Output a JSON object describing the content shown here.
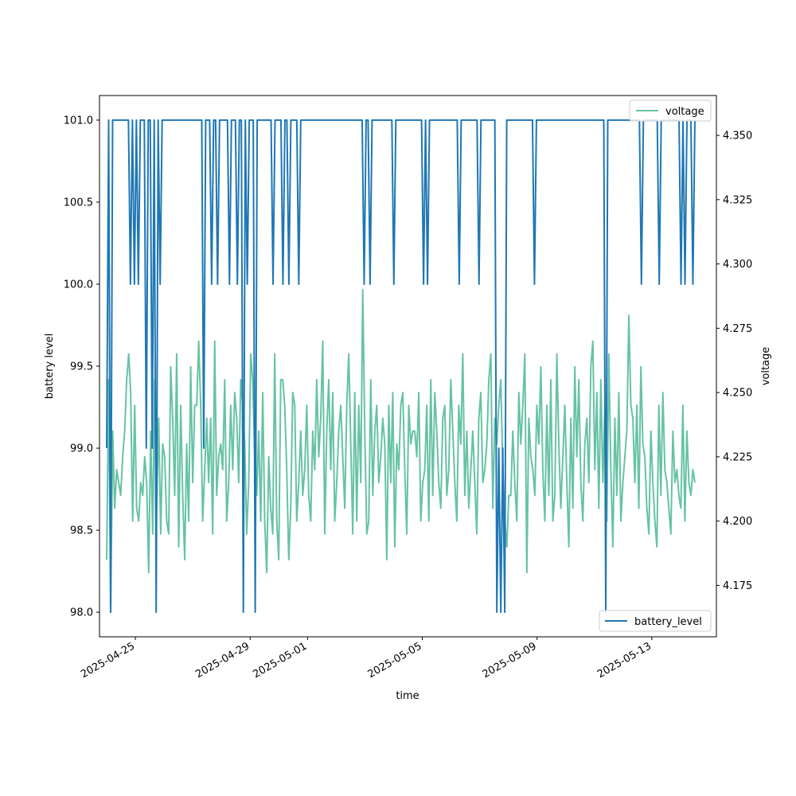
{
  "chart_data": {
    "type": "line",
    "xlabel": "time",
    "ylabel_left": "battery level",
    "ylabel_right": "voltage",
    "xlim": [
      "2025-04-23T18:00",
      "2025-05-15T06:00"
    ],
    "xticks": [
      "2025-04-25",
      "2025-04-29",
      "2025-05-01",
      "2025-05-05",
      "2025-05-09",
      "2025-05-13"
    ],
    "ylim_left": [
      97.85,
      101.15
    ],
    "yticks_left": [
      "98.0",
      "98.5",
      "99.0",
      "99.5",
      "100.0",
      "100.5",
      "101.0"
    ],
    "ylim_right": [
      4.155,
      4.3655
    ],
    "yticks_right": [
      "4.175",
      "4.200",
      "4.225",
      "4.250",
      "4.275",
      "4.300",
      "4.325",
      "4.350"
    ],
    "x_start": "2025-04-24T00:00",
    "x_end": "2025-05-14T12:00",
    "series": [
      {
        "name": "battery_level",
        "axis": "left",
        "color": "#1f77b4",
        "legend_position": "lower-right",
        "values": [
          99,
          101,
          98,
          101,
          101,
          101,
          101,
          101,
          101,
          101,
          101,
          101,
          100,
          101,
          100,
          101,
          100,
          101,
          101,
          101,
          99,
          101,
          101,
          99,
          101,
          98,
          101,
          100,
          101,
          101,
          101,
          101,
          101,
          101,
          101,
          101,
          101,
          101,
          101,
          101,
          101,
          101,
          101,
          101,
          101,
          101,
          101,
          101,
          101,
          99,
          101,
          101,
          101,
          100,
          101,
          101,
          100,
          101,
          101,
          101,
          101,
          101,
          100,
          101,
          101,
          101,
          100,
          101,
          101,
          98,
          101,
          100,
          101,
          101,
          101,
          98,
          101,
          101,
          101,
          101,
          101,
          101,
          101,
          101,
          100,
          101,
          101,
          101,
          101,
          100,
          101,
          101,
          100,
          101,
          101,
          101,
          101,
          100,
          101,
          101,
          101,
          101,
          101,
          101,
          101,
          101,
          101,
          101,
          101,
          101,
          101,
          101,
          101,
          101,
          101,
          101,
          101,
          101,
          101,
          101,
          101,
          101,
          101,
          101,
          101,
          101,
          101,
          101,
          101,
          101,
          100,
          101,
          101,
          100,
          101,
          101,
          101,
          101,
          101,
          101,
          101,
          101,
          101,
          101,
          101,
          100,
          101,
          101,
          101,
          101,
          101,
          101,
          101,
          101,
          101,
          101,
          101,
          101,
          101,
          101,
          100,
          101,
          100,
          101,
          101,
          101,
          101,
          101,
          101,
          101,
          101,
          101,
          101,
          101,
          101,
          101,
          101,
          101,
          100,
          101,
          101,
          101,
          101,
          101,
          101,
          101,
          101,
          101,
          100,
          101,
          101,
          101,
          101,
          101,
          101,
          101,
          101,
          98,
          99,
          98,
          99,
          98,
          101,
          101,
          101,
          101,
          101,
          101,
          101,
          101,
          101,
          101,
          101,
          101,
          101,
          101,
          100,
          101,
          101,
          101,
          101,
          101,
          101,
          101,
          101,
          101,
          101,
          101,
          101,
          101,
          101,
          101,
          101,
          101,
          101,
          101,
          101,
          101,
          101,
          101,
          101,
          101,
          101,
          101,
          101,
          101,
          101,
          101,
          101,
          101,
          101,
          101,
          98,
          101,
          101,
          101,
          101,
          101,
          101,
          101,
          101,
          101,
          101,
          101,
          101,
          101,
          101,
          101,
          101,
          101,
          100,
          101,
          101,
          101,
          101,
          101,
          101,
          101,
          101,
          100,
          101,
          101,
          101,
          101,
          101,
          101,
          101,
          101,
          101,
          101,
          100,
          101,
          100,
          101,
          101,
          101,
          100,
          101
        ]
      },
      {
        "name": "voltage",
        "axis": "right",
        "color": "#66c2a5",
        "legend_position": "upper-right",
        "values": [
          4.185,
          4.255,
          4.165,
          4.235,
          4.205,
          4.22,
          4.215,
          4.21,
          4.225,
          4.235,
          4.255,
          4.265,
          4.25,
          4.2,
          4.245,
          4.205,
          4.2,
          4.215,
          4.21,
          4.225,
          4.215,
          4.18,
          4.235,
          4.195,
          4.255,
          4.205,
          4.24,
          4.195,
          4.23,
          4.225,
          4.2,
          4.195,
          4.26,
          4.24,
          4.21,
          4.265,
          4.19,
          4.245,
          4.21,
          4.185,
          4.23,
          4.2,
          4.26,
          4.215,
          4.245,
          4.245,
          4.27,
          4.245,
          4.2,
          4.22,
          4.24,
          4.215,
          4.24,
          4.195,
          4.27,
          4.21,
          4.225,
          4.23,
          4.22,
          4.255,
          4.2,
          4.215,
          4.245,
          4.22,
          4.25,
          4.24,
          4.215,
          4.255,
          4.245,
          4.23,
          4.195,
          4.215,
          4.265,
          4.255,
          4.225,
          4.21,
          4.235,
          4.2,
          4.25,
          4.2,
          4.18,
          4.225,
          4.205,
          4.195,
          4.265,
          4.2,
          4.185,
          4.255,
          4.255,
          4.245,
          4.22,
          4.185,
          4.205,
          4.25,
          4.245,
          4.2,
          4.215,
          4.235,
          4.21,
          4.22,
          4.245,
          4.21,
          4.2,
          4.235,
          4.22,
          4.255,
          4.225,
          4.24,
          4.27,
          4.195,
          4.235,
          4.255,
          4.22,
          4.25,
          4.2,
          4.215,
          4.235,
          4.245,
          4.225,
          4.205,
          4.245,
          4.265,
          4.23,
          4.195,
          4.25,
          4.2,
          4.245,
          4.215,
          4.29,
          4.235,
          4.195,
          4.2,
          4.255,
          4.21,
          4.235,
          4.245,
          4.215,
          4.225,
          4.24,
          4.23,
          4.185,
          4.245,
          4.215,
          4.25,
          4.19,
          4.23,
          4.22,
          4.245,
          4.25,
          4.22,
          4.195,
          4.245,
          4.23,
          4.235,
          4.235,
          4.225,
          4.25,
          4.2,
          4.215,
          4.22,
          4.245,
          4.2,
          4.255,
          4.21,
          4.25,
          4.235,
          4.215,
          4.205,
          4.24,
          4.245,
          4.21,
          4.22,
          4.255,
          4.235,
          4.215,
          4.2,
          4.245,
          4.23,
          4.265,
          4.21,
          4.235,
          4.205,
          4.22,
          4.235,
          4.215,
          4.195,
          4.24,
          4.25,
          4.215,
          4.22,
          4.23,
          4.255,
          4.265,
          4.205,
          4.24,
          4.23,
          4.245,
          4.255,
          4.22,
          4.2,
          4.19,
          4.21,
          4.21,
          4.235,
          4.215,
          4.2,
          4.25,
          4.23,
          4.245,
          4.265,
          4.18,
          4.24,
          4.225,
          4.22,
          4.21,
          4.245,
          4.23,
          4.26,
          4.22,
          4.2,
          4.245,
          4.21,
          4.255,
          4.2,
          4.21,
          4.265,
          4.23,
          4.205,
          4.225,
          4.245,
          4.215,
          4.19,
          4.24,
          4.205,
          4.26,
          4.225,
          4.255,
          4.215,
          4.2,
          4.23,
          4.24,
          4.215,
          4.26,
          4.27,
          4.22,
          4.25,
          4.205,
          4.255,
          4.215,
          4.245,
          4.2,
          4.265,
          4.22,
          4.19,
          4.24,
          4.21,
          4.25,
          4.2,
          4.215,
          4.225,
          4.235,
          4.28,
          4.245,
          4.24,
          4.215,
          4.245,
          4.205,
          4.26,
          4.23,
          4.225,
          4.205,
          4.195,
          4.235,
          4.215,
          4.2,
          4.19,
          4.245,
          4.21,
          4.25,
          4.22,
          4.215,
          4.205,
          4.195,
          4.235,
          4.215,
          4.22,
          4.21,
          4.205,
          4.245,
          4.2,
          4.235,
          4.215,
          4.21,
          4.22,
          4.215
        ]
      }
    ]
  }
}
